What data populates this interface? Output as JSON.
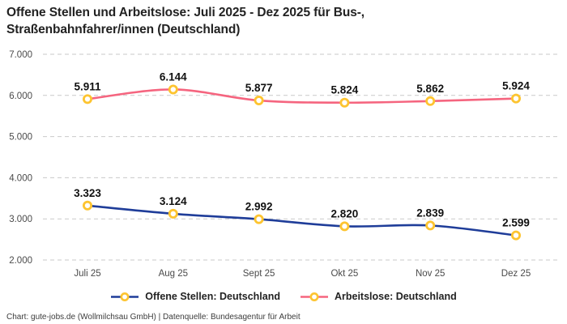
{
  "header": {
    "title": "Offene Stellen und Arbeitslose: Juli 2025 - Dez 2025 für Bus-,\nStraßenbahnfahrer/innen (Deutschland)"
  },
  "footer": {
    "credit": "Chart: gute-jobs.de (Wollmilchsau GmbH) | Datenquelle: Bundesagentur für Arbeit"
  },
  "chart_data": {
    "type": "line",
    "title": "Offene Stellen und Arbeitslose: Juli 2025 - Dez 2025 für Bus-, Straßenbahnfahrer/innen (Deutschland)",
    "categories": [
      "Juli 25",
      "Aug 25",
      "Sept 25",
      "Okt 25",
      "Nov 25",
      "Dez 25"
    ],
    "series": [
      {
        "name": "Offene Stellen: Deutschland",
        "color": "#1f3d99",
        "values": [
          3323,
          3124,
          2992,
          2820,
          2839,
          2599
        ]
      },
      {
        "name": "Arbeitslose: Deutschland",
        "color": "#f5657f",
        "values": [
          5911,
          6144,
          5877,
          5824,
          5862,
          5924
        ]
      }
    ],
    "value_labels": [
      [
        "3.323",
        "3.124",
        "2.992",
        "2.820",
        "2.839",
        "2.599"
      ],
      [
        "5.911",
        "6.144",
        "5.877",
        "5.824",
        "5.862",
        "5.924"
      ]
    ],
    "ylim": [
      2000,
      7000
    ],
    "yticks": [
      7000,
      6000,
      5000,
      4000,
      3000,
      2000
    ],
    "ytick_labels": [
      "7.000",
      "6.000",
      "5.000",
      "4.000",
      "3.000",
      "2.000"
    ],
    "xlabel": "",
    "ylabel": "",
    "grid": "horizontal-dashed",
    "grid_color": "#c9c9c9",
    "legend_position": "bottom-center",
    "marker": {
      "fill": "#ffffff",
      "stroke": "#fdc430"
    }
  }
}
